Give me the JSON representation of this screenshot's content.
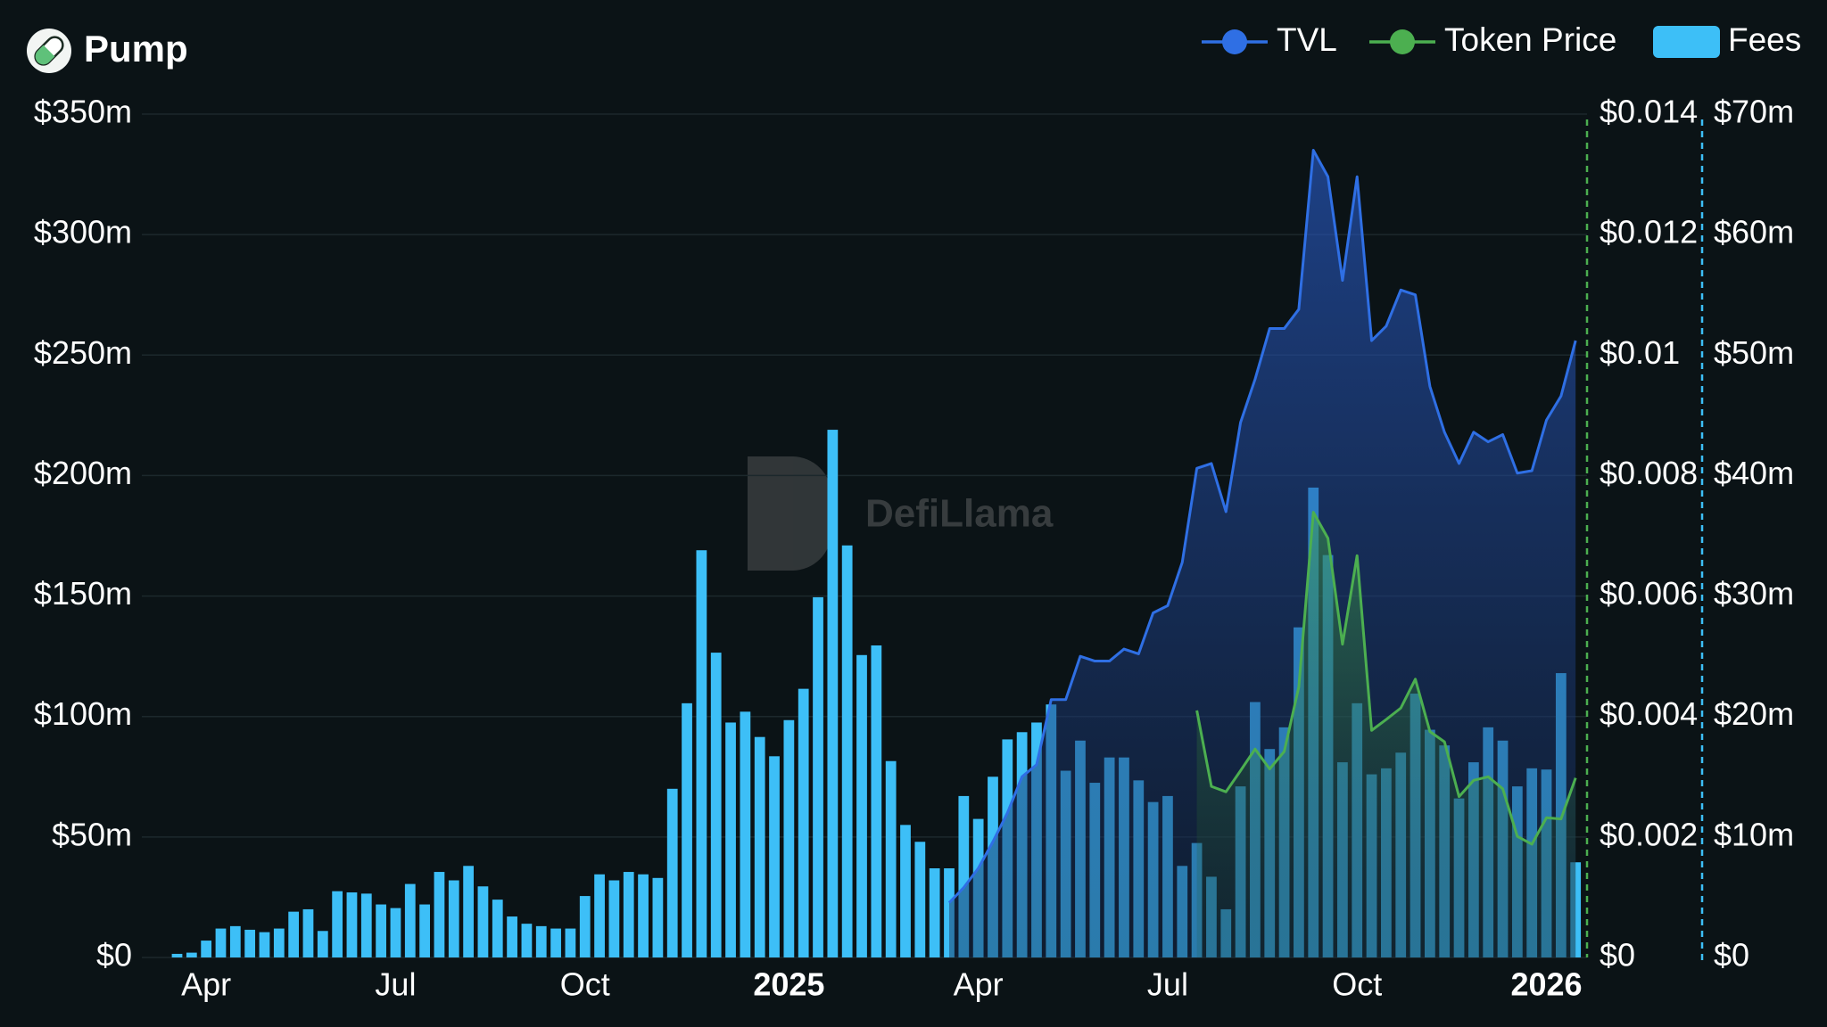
{
  "chart_data": {
    "type": "combo",
    "title": "Pump",
    "watermark": "DefiLlama",
    "categories": [
      null,
      null,
      "Apr",
      null,
      null,
      null,
      null,
      null,
      null,
      null,
      null,
      null,
      null,
      null,
      null,
      "Jul",
      null,
      null,
      null,
      null,
      null,
      null,
      null,
      null,
      null,
      null,
      null,
      null,
      "Oct",
      null,
      null,
      null,
      null,
      null,
      null,
      null,
      null,
      null,
      null,
      null,
      null,
      null,
      "2025",
      null,
      null,
      null,
      null,
      null,
      null,
      null,
      null,
      null,
      null,
      null,
      null,
      "Apr",
      null,
      null,
      null,
      null,
      null,
      null,
      null,
      null,
      null,
      null,
      null,
      null,
      "Jul",
      null,
      null,
      null,
      null,
      null,
      null,
      null,
      null,
      null,
      null,
      null,
      null,
      "Oct",
      null,
      null,
      null,
      null,
      null,
      null,
      null,
      null,
      null,
      null,
      null,
      null,
      "2026",
      null,
      null
    ],
    "series": [
      {
        "name": "TVL",
        "type": "line",
        "axis": "y",
        "color": "#2f6fe4",
        "values": [
          null,
          null,
          null,
          null,
          null,
          null,
          null,
          null,
          null,
          null,
          null,
          null,
          null,
          null,
          null,
          null,
          null,
          null,
          null,
          null,
          null,
          null,
          null,
          null,
          null,
          null,
          null,
          null,
          null,
          null,
          null,
          null,
          null,
          null,
          null,
          null,
          null,
          null,
          null,
          null,
          null,
          null,
          null,
          null,
          null,
          null,
          null,
          null,
          null,
          null,
          null,
          null,
          null,
          22.7,
          29,
          37,
          48,
          60,
          75,
          80,
          107,
          107,
          125,
          123,
          123,
          128,
          126,
          143,
          146,
          164,
          203,
          205,
          185,
          222,
          240,
          261,
          261,
          269,
          335,
          324,
          281,
          324,
          256,
          262,
          277,
          275,
          237,
          218,
          205,
          218,
          214,
          217,
          201,
          202,
          223,
          233,
          256
        ]
      },
      {
        "name": "Token Price",
        "type": "line",
        "axis": "y2",
        "color": "#4caf50",
        "values": [
          null,
          null,
          null,
          null,
          null,
          null,
          null,
          null,
          null,
          null,
          null,
          null,
          null,
          null,
          null,
          null,
          null,
          null,
          null,
          null,
          null,
          null,
          null,
          null,
          null,
          null,
          null,
          null,
          null,
          null,
          null,
          null,
          null,
          null,
          null,
          null,
          null,
          null,
          null,
          null,
          null,
          null,
          null,
          null,
          null,
          null,
          null,
          null,
          null,
          null,
          null,
          null,
          null,
          null,
          null,
          null,
          null,
          null,
          null,
          null,
          null,
          null,
          null,
          null,
          null,
          null,
          null,
          null,
          null,
          null,
          0.0041,
          0.00284,
          0.00275,
          0.0031,
          0.00346,
          0.00313,
          0.00342,
          0.00449,
          0.00739,
          0.00696,
          0.0052,
          0.00667,
          0.00377,
          0.00395,
          0.00414,
          0.00462,
          0.00375,
          0.00358,
          0.00267,
          0.00294,
          0.003,
          0.0028,
          0.00201,
          0.00188,
          0.00232,
          0.0023,
          0.00298
        ]
      },
      {
        "name": "Fees",
        "type": "bar",
        "axis": "y3",
        "color": "#3dbff7",
        "values": [
          0.3,
          0.4,
          1.4,
          2.4,
          2.6,
          2.3,
          2.1,
          2.4,
          3.8,
          4.0,
          2.2,
          5.5,
          5.4,
          5.3,
          4.4,
          4.1,
          6.1,
          4.4,
          7.1,
          6.4,
          7.6,
          5.9,
          4.8,
          3.4,
          2.8,
          2.6,
          2.4,
          2.4,
          5.1,
          6.9,
          6.4,
          7.1,
          6.9,
          6.6,
          14.0,
          21.1,
          33.8,
          25.3,
          19.5,
          20.4,
          18.3,
          16.7,
          19.7,
          22.3,
          29.9,
          43.8,
          34.2,
          25.1,
          25.9,
          16.3,
          11.0,
          9.6,
          7.4,
          7.4,
          13.4,
          11.5,
          15.0,
          18.1,
          18.7,
          19.5,
          21.0,
          15.5,
          18.0,
          14.5,
          16.6,
          16.6,
          14.7,
          12.9,
          13.4,
          7.6,
          9.5,
          6.7,
          4.0,
          14.2,
          21.2,
          17.3,
          19.1,
          27.4,
          39.0,
          33.4,
          16.2,
          21.1,
          15.2,
          15.7,
          17.0,
          21.9,
          18.9,
          17.6,
          13.2,
          16.2,
          19.1,
          18.0,
          14.2,
          15.7,
          15.6,
          23.6,
          7.9
        ]
      }
    ],
    "ylim": [
      0,
      350
    ],
    "yticks": [
      {
        "value": 0,
        "label": "$0"
      },
      {
        "value": 50,
        "label": "$50m"
      },
      {
        "value": 100,
        "label": "$100m"
      },
      {
        "value": 150,
        "label": "$150m"
      },
      {
        "value": 200,
        "label": "$200m"
      },
      {
        "value": 250,
        "label": "$250m"
      },
      {
        "value": 300,
        "label": "$300m"
      },
      {
        "value": 350,
        "label": "$350m"
      }
    ],
    "y2lim": [
      0,
      0.014
    ],
    "y2ticks": [
      {
        "value": 0,
        "label": "$0"
      },
      {
        "value": 0.002,
        "label": "$0.002"
      },
      {
        "value": 0.004,
        "label": "$0.004"
      },
      {
        "value": 0.006,
        "label": "$0.006"
      },
      {
        "value": 0.008,
        "label": "$0.008"
      },
      {
        "value": 0.01,
        "label": "$0.01"
      },
      {
        "value": 0.012,
        "label": "$0.012"
      },
      {
        "value": 0.014,
        "label": "$0.014"
      }
    ],
    "y3lim": [
      0,
      70
    ],
    "y3ticks": [
      {
        "value": 0,
        "label": "$0"
      },
      {
        "value": 10,
        "label": "$10m"
      },
      {
        "value": 20,
        "label": "$20m"
      },
      {
        "value": 30,
        "label": "$30m"
      },
      {
        "value": 40,
        "label": "$40m"
      },
      {
        "value": 50,
        "label": "$50m"
      },
      {
        "value": 60,
        "label": "$60m"
      },
      {
        "value": 70,
        "label": "$70m"
      }
    ],
    "grid": true
  }
}
